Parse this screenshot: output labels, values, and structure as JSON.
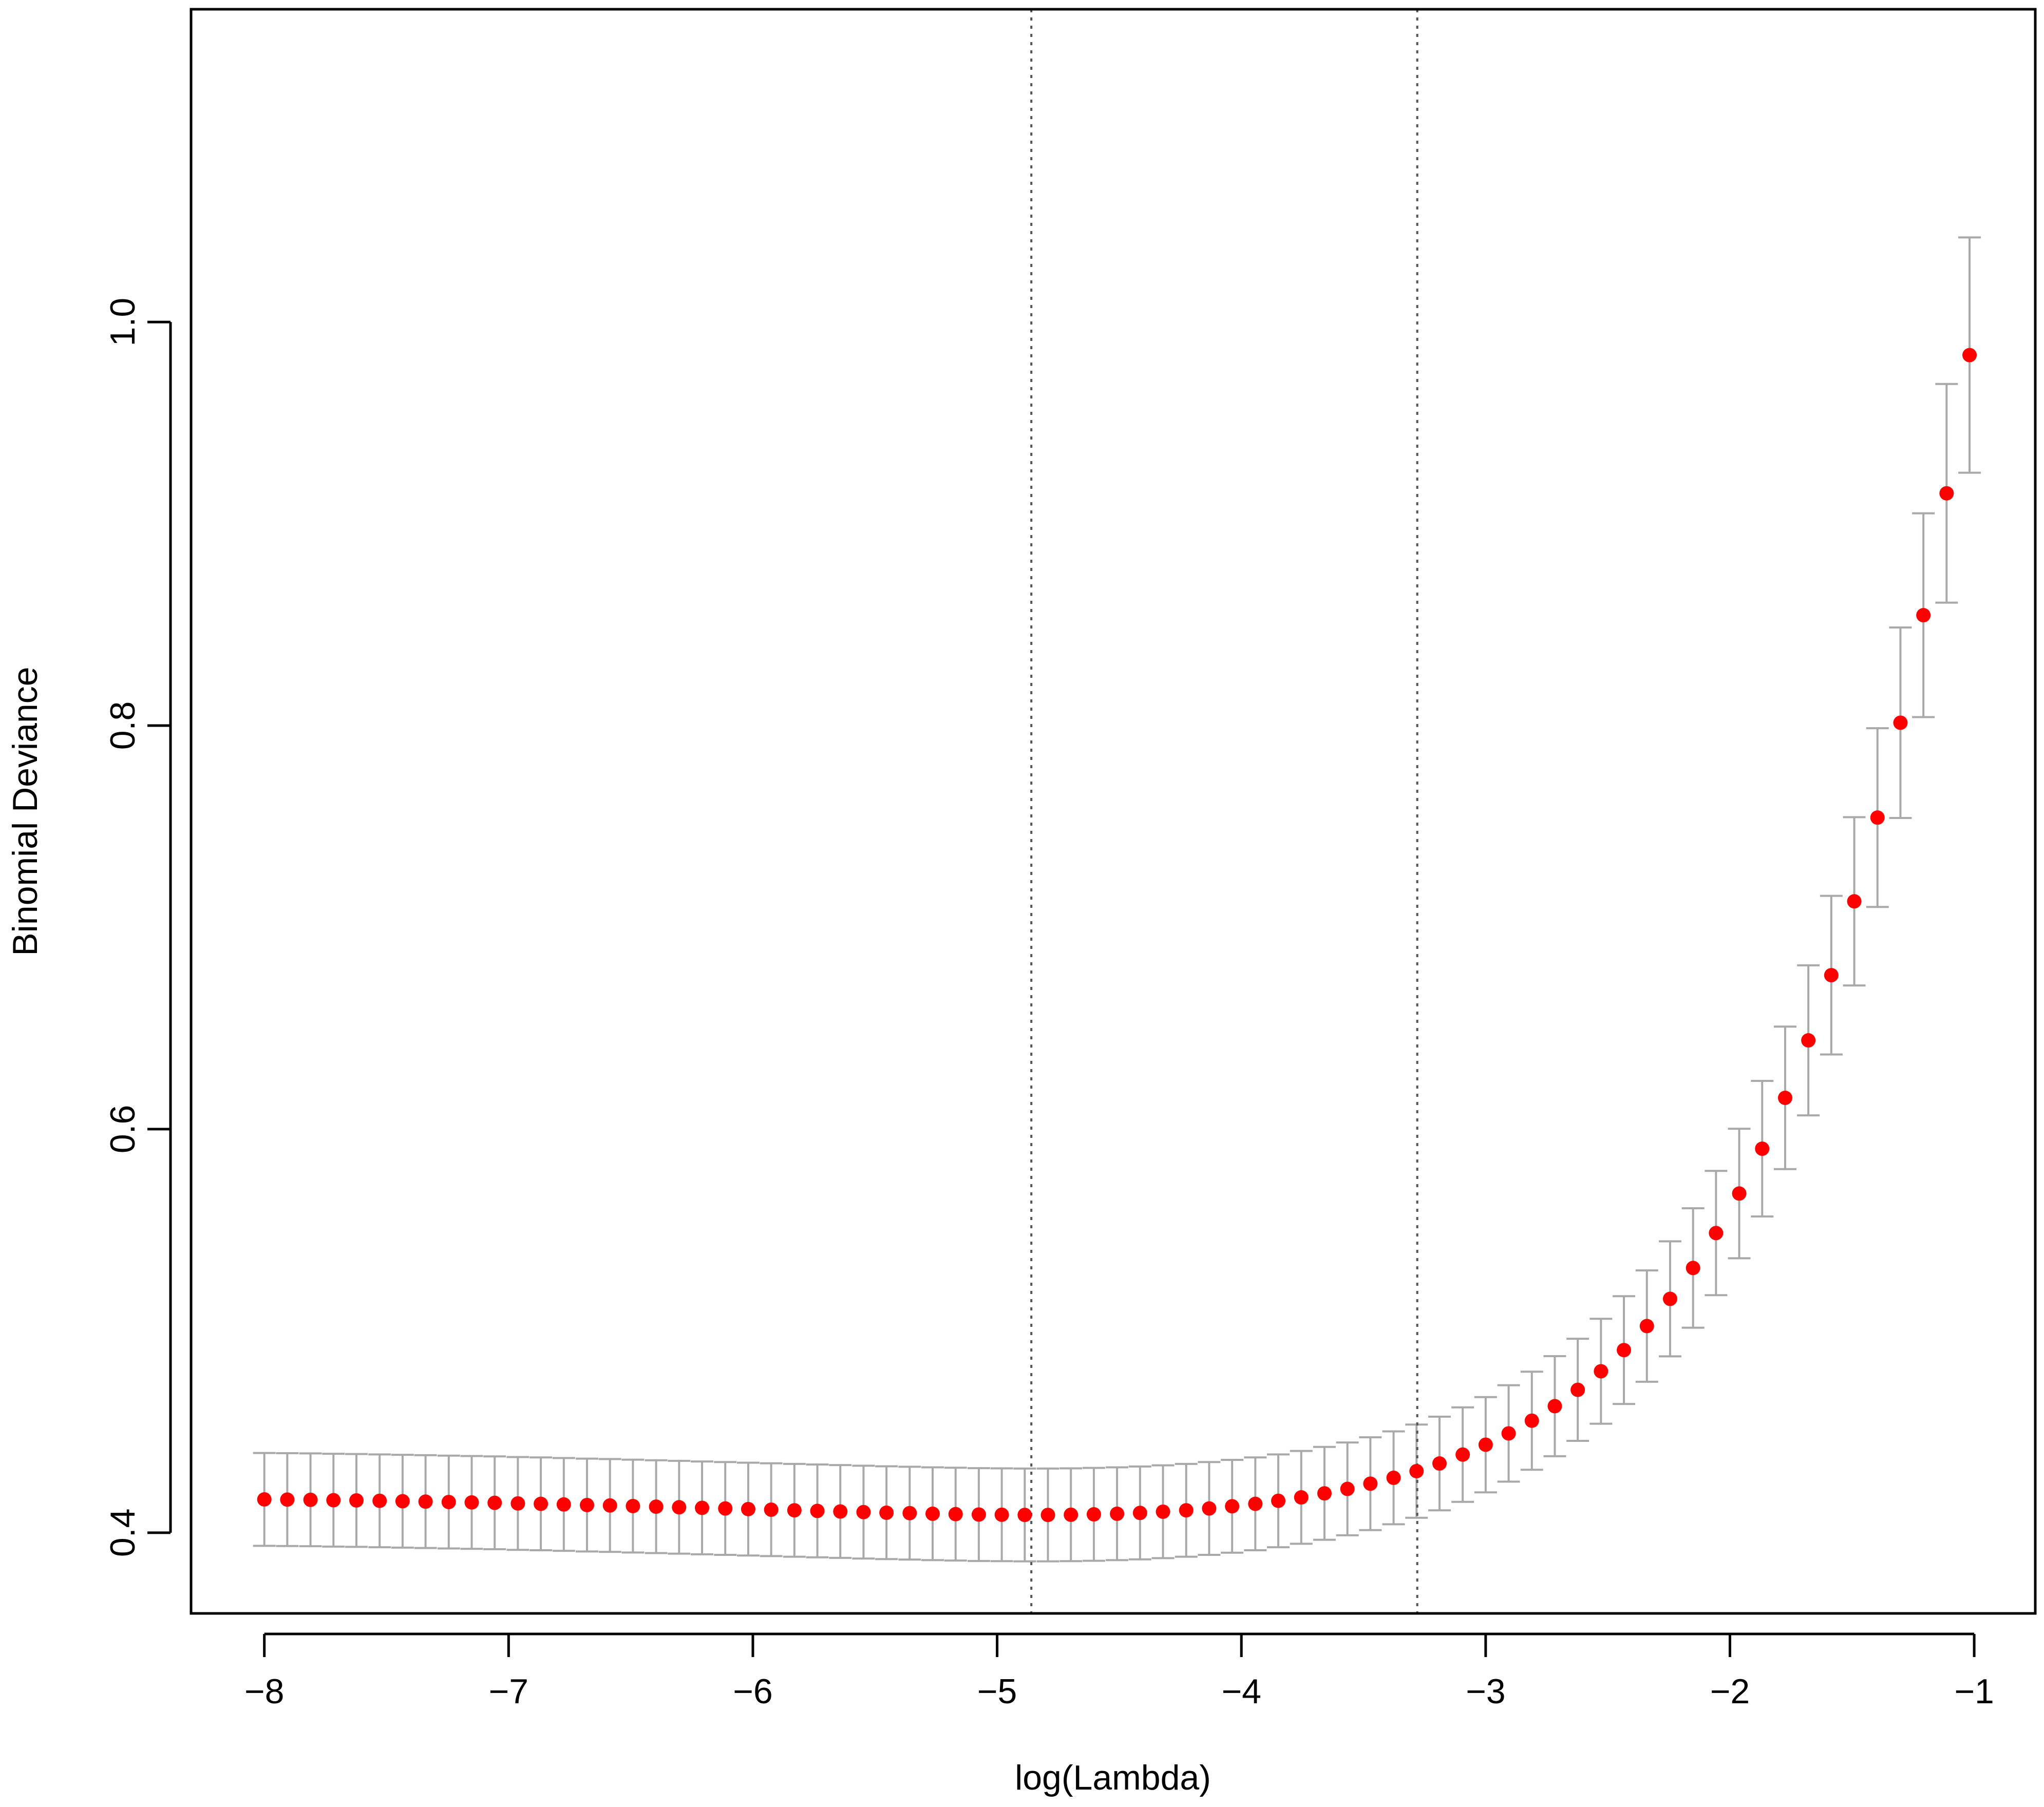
{
  "chart_data": {
    "type": "scatter",
    "xlabel": "log(Lambda)",
    "ylabel": "Binomial Deviance",
    "xlim": [
      -8.3,
      -0.75
    ],
    "ylim": [
      0.36,
      1.155
    ],
    "x_ticks": [
      -8,
      -7,
      -6,
      -5,
      -4,
      -3,
      -2,
      -1
    ],
    "x_tick_labels": [
      "−8",
      "−7",
      "−6",
      "−5",
      "−4",
      "−3",
      "−2",
      "−1"
    ],
    "y_ticks": [
      0.4,
      0.6,
      0.8,
      1.0
    ],
    "y_tick_labels": [
      "0.4",
      "0.6",
      "0.8",
      "1.0"
    ],
    "vlines": [
      -4.86,
      -3.28
    ],
    "grid": false,
    "colors": {
      "points": "#ff0000",
      "error_bars": "#a9a9a9",
      "frame": "#000000",
      "vlines": "#555555"
    },
    "series": [
      {
        "x": [
          -8.0,
          -7.906,
          -7.811,
          -7.717,
          -7.623,
          -7.528,
          -7.434,
          -7.34,
          -7.245,
          -7.151,
          -7.057,
          -6.962,
          -6.868,
          -6.774,
          -6.679,
          -6.585,
          -6.491,
          -6.396,
          -6.302,
          -6.208,
          -6.113,
          -6.019,
          -5.925,
          -5.83,
          -5.736,
          -5.642,
          -5.547,
          -5.453,
          -5.358,
          -5.264,
          -5.17,
          -5.075,
          -4.981,
          -4.887,
          -4.792,
          -4.698,
          -4.604,
          -4.509,
          -4.415,
          -4.321,
          -4.226,
          -4.132,
          -4.038,
          -3.943,
          -3.849,
          -3.755,
          -3.66,
          -3.566,
          -3.472,
          -3.377,
          -3.283,
          -3.189,
          -3.094,
          -3.0,
          -2.906,
          -2.811,
          -2.717,
          -2.623,
          -2.528,
          -2.434,
          -2.34,
          -2.245,
          -2.151,
          -2.057,
          -1.962,
          -1.868,
          -1.774,
          -1.679,
          -1.585,
          -1.491,
          -1.396,
          -1.302,
          -1.208,
          -1.113,
          -1.019
        ],
        "y": [
          0.4165,
          0.4164,
          0.4163,
          0.4161,
          0.416,
          0.4158,
          0.4156,
          0.4154,
          0.4152,
          0.415,
          0.4148,
          0.4145,
          0.4143,
          0.414,
          0.4137,
          0.4135,
          0.4132,
          0.4129,
          0.4126,
          0.4123,
          0.412,
          0.4117,
          0.4114,
          0.4111,
          0.4108,
          0.4105,
          0.4102,
          0.4099,
          0.4097,
          0.4094,
          0.4092,
          0.409,
          0.4089,
          0.4088,
          0.4088,
          0.4089,
          0.4091,
          0.4094,
          0.4098,
          0.4104,
          0.4111,
          0.412,
          0.4131,
          0.4143,
          0.4158,
          0.4175,
          0.4195,
          0.4217,
          0.4243,
          0.4272,
          0.4305,
          0.4343,
          0.4387,
          0.4436,
          0.4492,
          0.4555,
          0.4627,
          0.4708,
          0.48,
          0.4905,
          0.5024,
          0.5159,
          0.5312,
          0.5485,
          0.5681,
          0.5903,
          0.6155,
          0.644,
          0.6763,
          0.7129,
          0.7544,
          0.8014,
          0.8547,
          0.9151,
          0.9836
        ],
        "se": [
          0.023,
          0.023,
          0.023,
          0.023,
          0.023,
          0.023,
          0.023,
          0.023,
          0.023,
          0.023,
          0.023,
          0.023,
          0.023,
          0.023,
          0.023,
          0.023,
          0.023,
          0.023,
          0.023,
          0.023,
          0.023,
          0.023,
          0.023,
          0.023,
          0.023,
          0.023,
          0.023,
          0.023,
          0.023,
          0.023,
          0.023,
          0.023,
          0.023,
          0.023,
          0.023,
          0.023,
          0.023,
          0.023,
          0.023,
          0.023,
          0.023,
          0.023,
          0.023,
          0.023,
          0.023,
          0.023,
          0.023,
          0.023,
          0.023,
          0.023,
          0.0231,
          0.0232,
          0.0234,
          0.0236,
          0.0239,
          0.0243,
          0.0248,
          0.0253,
          0.026,
          0.0267,
          0.0276,
          0.0285,
          0.0296,
          0.0308,
          0.0321,
          0.0336,
          0.0353,
          0.0372,
          0.0393,
          0.0417,
          0.0443,
          0.0472,
          0.0505,
          0.0542,
          0.0583
        ]
      }
    ]
  }
}
